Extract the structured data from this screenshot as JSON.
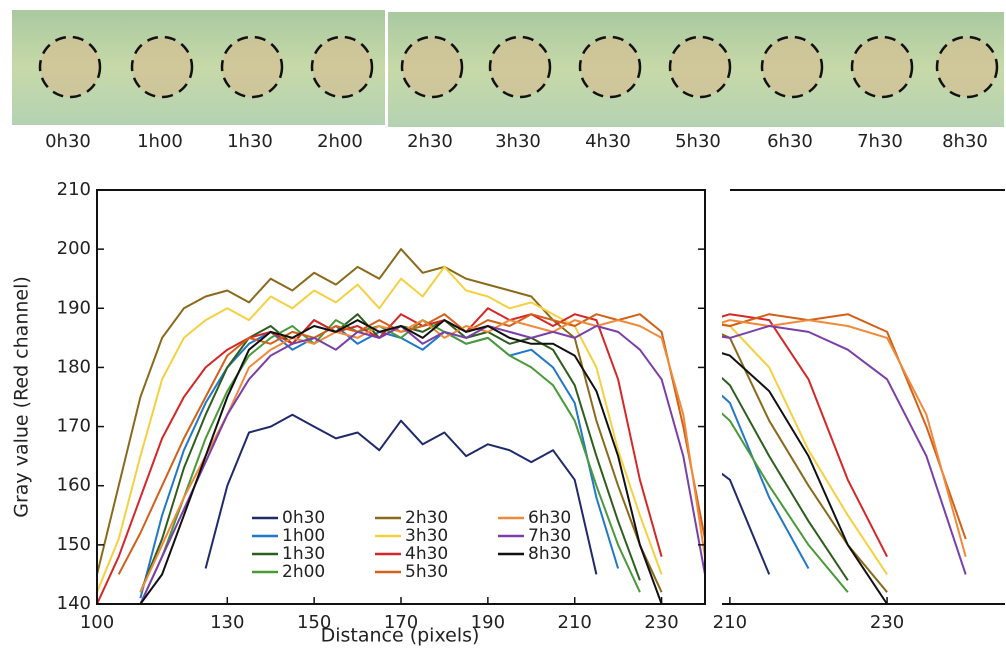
{
  "strip_labels": [
    "0h30",
    "1h00",
    "1h30",
    "2h00",
    "2h30",
    "3h30",
    "4h30",
    "5h30",
    "6h30",
    "7h30",
    "8h30"
  ],
  "chart_data": {
    "type": "line",
    "x_label": "Distance  (pixels)",
    "y_label": "Gray value (Red channel)",
    "xlim": [
      100,
      240
    ],
    "ylim": [
      140,
      210
    ],
    "xticks": [
      100,
      130,
      150,
      170,
      190,
      210,
      230
    ],
    "yticks": [
      140,
      150,
      160,
      170,
      180,
      190,
      200,
      210
    ],
    "inset": {
      "xlim": [
        209,
        245
      ],
      "xticks": [
        210,
        230
      ]
    },
    "x": [
      100,
      105,
      110,
      115,
      120,
      125,
      130,
      135,
      140,
      145,
      150,
      155,
      160,
      165,
      170,
      175,
      180,
      185,
      190,
      195,
      200,
      205,
      210,
      215,
      220,
      225,
      230,
      235,
      240
    ],
    "series": [
      {
        "name": "0h30",
        "color": "#1f2a6b",
        "values": [
          null,
          null,
          null,
          null,
          null,
          146,
          160,
          169,
          170,
          172,
          170,
          168,
          169,
          166,
          171,
          167,
          169,
          165,
          167,
          166,
          164,
          166,
          161,
          145,
          null,
          null,
          null,
          null,
          null
        ]
      },
      {
        "name": "1h00",
        "color": "#1f78c8",
        "values": [
          null,
          null,
          141,
          155,
          166,
          174,
          180,
          184,
          186,
          183,
          185,
          187,
          184,
          186,
          185,
          183,
          186,
          184,
          185,
          182,
          183,
          180,
          174,
          158,
          146,
          null,
          null,
          null,
          null
        ]
      },
      {
        "name": "1h30",
        "color": "#2e5e1e",
        "values": [
          null,
          null,
          142,
          151,
          163,
          172,
          180,
          185,
          187,
          184,
          188,
          186,
          189,
          185,
          187,
          186,
          188,
          185,
          186,
          184,
          185,
          183,
          177,
          165,
          154,
          144,
          null,
          null,
          null
        ]
      },
      {
        "name": "2h00",
        "color": "#4a9a3a",
        "values": [
          null,
          null,
          140,
          148,
          158,
          168,
          176,
          182,
          185,
          187,
          184,
          188,
          186,
          187,
          185,
          188,
          186,
          184,
          185,
          182,
          180,
          177,
          171,
          160,
          150,
          142,
          null,
          null,
          null
        ]
      },
      {
        "name": "2h30",
        "color": "#8a6a1a",
        "values": [
          145,
          160,
          175,
          185,
          190,
          192,
          193,
          191,
          195,
          193,
          196,
          194,
          197,
          195,
          200,
          196,
          197,
          195,
          194,
          193,
          192,
          188,
          185,
          171,
          160,
          150,
          142,
          null,
          null
        ]
      },
      {
        "name": "3h30",
        "color": "#f5d040",
        "values": [
          142,
          151,
          165,
          178,
          185,
          188,
          190,
          188,
          192,
          190,
          193,
          191,
          194,
          190,
          195,
          192,
          197,
          193,
          192,
          190,
          191,
          189,
          187,
          180,
          166,
          155,
          145,
          null,
          null
        ]
      },
      {
        "name": "4h30",
        "color": "#d62728",
        "values": [
          140,
          148,
          158,
          168,
          175,
          180,
          183,
          185,
          186,
          184,
          188,
          186,
          187,
          185,
          189,
          187,
          188,
          186,
          190,
          188,
          189,
          187,
          189,
          188,
          178,
          161,
          148,
          null,
          null
        ]
      },
      {
        "name": "5h30",
        "color": "#d2601a",
        "values": [
          null,
          145,
          152,
          160,
          168,
          175,
          182,
          185,
          184,
          186,
          185,
          187,
          186,
          188,
          186,
          187,
          189,
          186,
          188,
          187,
          189,
          188,
          187,
          189,
          188,
          189,
          186,
          170,
          151
        ]
      },
      {
        "name": "6h30",
        "color": "#f08a3a",
        "values": [
          null,
          null,
          142,
          150,
          158,
          165,
          172,
          180,
          183,
          185,
          184,
          186,
          185,
          187,
          186,
          188,
          185,
          187,
          186,
          188,
          187,
          186,
          188,
          187,
          188,
          187,
          185,
          172,
          148
        ]
      },
      {
        "name": "7h30",
        "color": "#7b3fa8",
        "values": [
          null,
          null,
          140,
          148,
          156,
          164,
          172,
          178,
          182,
          184,
          185,
          183,
          186,
          185,
          187,
          184,
          186,
          185,
          187,
          186,
          185,
          186,
          185,
          187,
          186,
          183,
          178,
          165,
          145
        ]
      },
      {
        "name": "8h30",
        "color": "#111111",
        "values": [
          null,
          null,
          140,
          145,
          155,
          165,
          175,
          183,
          186,
          185,
          187,
          186,
          188,
          186,
          187,
          185,
          188,
          186,
          187,
          185,
          184,
          184,
          182,
          176,
          165,
          150,
          140,
          null,
          null
        ]
      }
    ]
  }
}
